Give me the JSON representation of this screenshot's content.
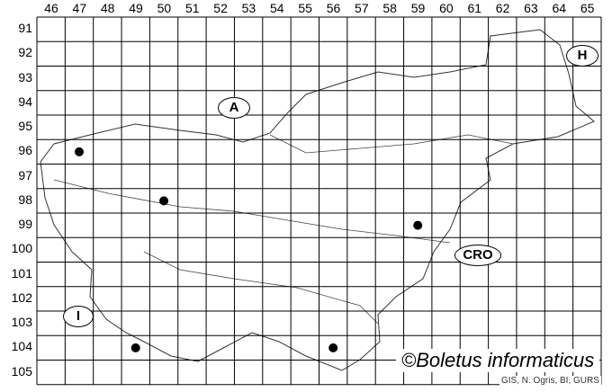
{
  "map": {
    "columns": [
      "46",
      "47",
      "48",
      "49",
      "50",
      "51",
      "52",
      "53",
      "54",
      "55",
      "56",
      "57",
      "58",
      "59",
      "60",
      "61",
      "62",
      "63",
      "64",
      "65"
    ],
    "rows": [
      "91",
      "92",
      "93",
      "94",
      "95",
      "96",
      "97",
      "98",
      "99",
      "100",
      "101",
      "102",
      "103",
      "104",
      "105"
    ],
    "country_labels": {
      "austria": "A",
      "hungary": "H",
      "croatia": "CRO",
      "italy": "I"
    },
    "records": [
      {
        "col": "47",
        "row": "96"
      },
      {
        "col": "50",
        "row": "98"
      },
      {
        "col": "59",
        "row": "99"
      },
      {
        "col": "49",
        "row": "104"
      },
      {
        "col": "56",
        "row": "104"
      }
    ],
    "credit": "©Boletus informaticus",
    "source": "GIS, N. Ogris, BI, GURS",
    "colors": {
      "grid": "#000000",
      "dot": "#000000"
    }
  }
}
